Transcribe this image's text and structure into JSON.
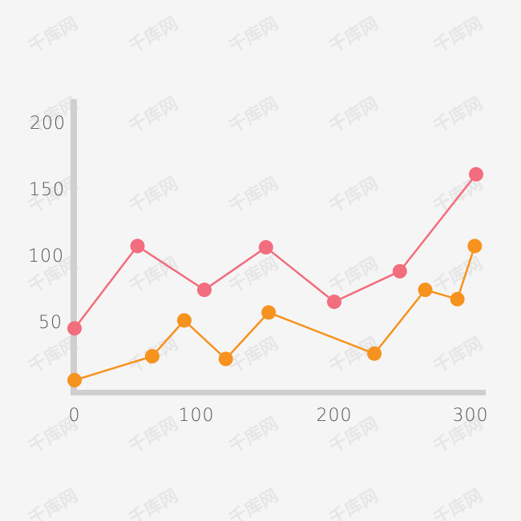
{
  "watermark": "千库网",
  "colors": {
    "background": "#f5f5f5",
    "axis": "#cfcfcf",
    "tick_text": "#555555",
    "watermark": "#e6e6e6"
  },
  "chart_data": {
    "type": "line",
    "xlim": [
      0,
      300
    ],
    "ylim": [
      0,
      200
    ],
    "x_ticks": [
      "0",
      "100",
      "200",
      "300"
    ],
    "y_ticks": [
      "50",
      "100",
      "150",
      "200"
    ],
    "grid": false,
    "series": [
      {
        "color": "#f26d7d",
        "points": [
          [
            0,
            48
          ],
          [
            47,
            110
          ],
          [
            97,
            77
          ],
          [
            143,
            109
          ],
          [
            194,
            68
          ],
          [
            243,
            91
          ],
          [
            300,
            164
          ]
        ]
      },
      {
        "color": "#f6921e",
        "points": [
          [
            0,
            9
          ],
          [
            58,
            27
          ],
          [
            82,
            54
          ],
          [
            113,
            25
          ],
          [
            145,
            60
          ],
          [
            224,
            29
          ],
          [
            262,
            77
          ],
          [
            286,
            70
          ],
          [
            299,
            110
          ]
        ]
      }
    ]
  }
}
